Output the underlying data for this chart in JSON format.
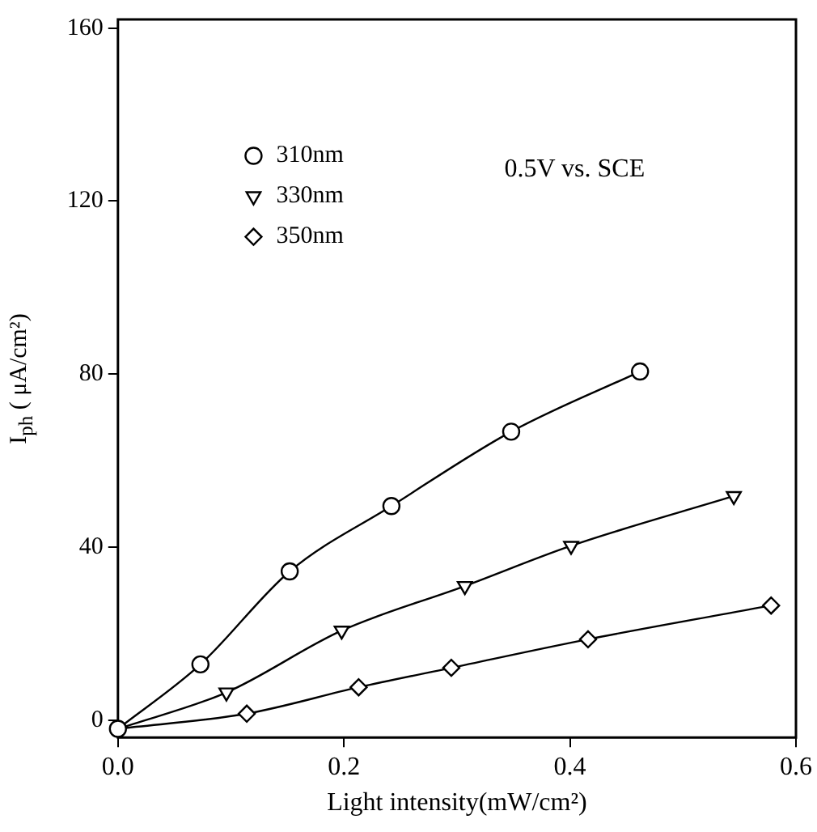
{
  "chart_data": {
    "type": "line",
    "xlabel": "Light intensity(mW/cm²)",
    "ylabel": "I$_{ph}$ ( μA/cm²)",
    "xlim": [
      0,
      0.6
    ],
    "xticks": [
      {
        "value": 0,
        "label": "0.0"
      },
      0.2,
      0.4,
      0.6
    ],
    "ylim": [
      -4,
      162
    ],
    "yticks": [
      0,
      40,
      80,
      120,
      160
    ],
    "grid": false,
    "legend": "top left",
    "line_style": "solid",
    "annotations": [
      "0.5V vs. SCE"
    ],
    "series": [
      {
        "name": "310nm",
        "color": "#000000",
        "marker": "circle",
        "x": [
          0,
          0.073,
          0.152,
          0.242,
          0.348,
          0.462
        ],
        "values": [
          -2,
          12.9,
          34.4,
          49.5,
          66.7,
          80.6
        ]
      },
      {
        "name": "330nm",
        "color": "#000000",
        "marker": "triangle",
        "x": [
          0,
          0.096,
          0.198,
          0.307,
          0.401,
          0.545
        ],
        "values": [
          -2,
          6.4,
          20.7,
          31,
          40.3,
          51.8
        ]
      },
      {
        "name": "350nm",
        "color": "#000000",
        "marker": "diamond",
        "x": [
          0,
          0.114,
          0.213,
          0.295,
          0.416,
          0.578
        ],
        "values": [
          -2,
          1.5,
          7.6,
          12.1,
          18.7,
          26.5
        ]
      }
    ]
  }
}
